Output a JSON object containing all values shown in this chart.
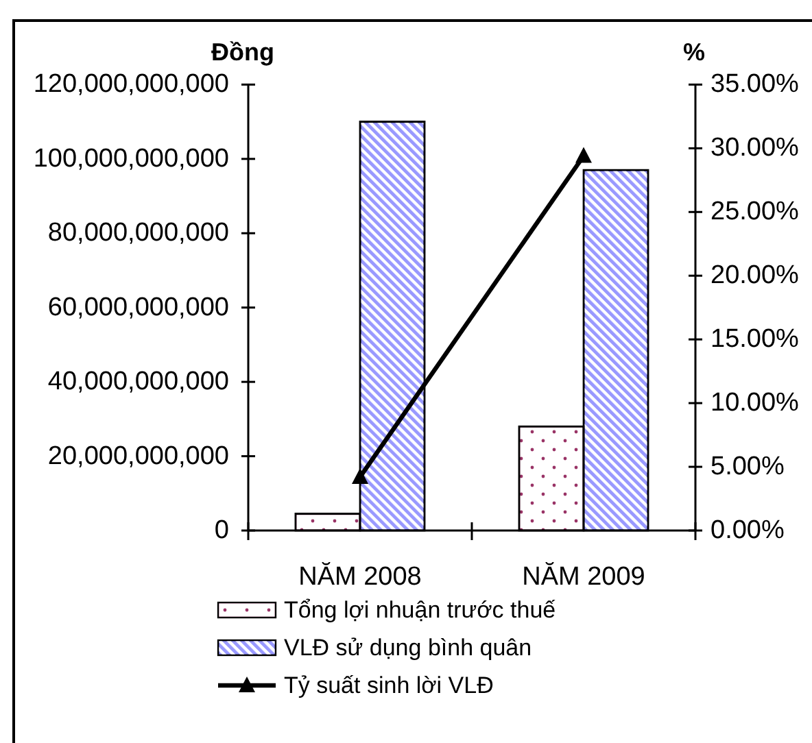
{
  "chart_data": {
    "type": "bar",
    "ylabel": "Đồng",
    "y2label": "%",
    "categories": [
      "NĂM 2008",
      "NĂM 2009"
    ],
    "series": [
      {
        "name": "Tổng lợi nhuận trước thuế",
        "color": "#993366",
        "values": [
          4500000000,
          28000000000
        ]
      },
      {
        "name": "VLĐ sử dụng bình quân",
        "color": "#9999ff",
        "values": [
          110000000000,
          97000000000
        ]
      },
      {
        "name": "Tỷ suất sinh lời VLĐ",
        "type": "line",
        "axis": "y2",
        "color": "#000000",
        "values": [
          4.2,
          29.4
        ]
      }
    ],
    "ylim": [
      0,
      120000000000
    ],
    "yticks": [
      0,
      {
        "value": 20000000000,
        "label": "20,000,000,000"
      },
      {
        "value": 40000000000,
        "label": "40,000,000,000"
      },
      {
        "value": 60000000000,
        "label": "60,000,000,000"
      },
      {
        "value": 80000000000,
        "label": "80,000,000,000"
      },
      {
        "value": 100000000000,
        "label": "100,000,000,000"
      },
      {
        "value": 120000000000,
        "label": "120,000,000,000"
      }
    ],
    "y2lim": [
      0,
      35
    ],
    "y2ticks": [
      {
        "value": 0,
        "label": "0.00%"
      },
      {
        "value": 5,
        "label": "5.00%"
      },
      {
        "value": 10,
        "label": "10.00%"
      },
      {
        "value": 15,
        "label": "15.00%"
      },
      {
        "value": 20,
        "label": "20.00%"
      },
      {
        "value": 25,
        "label": "25.00%"
      },
      {
        "value": 30,
        "label": "30.00%"
      },
      {
        "value": 35,
        "label": "35.00%"
      }
    ],
    "marker": "triangle",
    "legend": "bottom"
  }
}
